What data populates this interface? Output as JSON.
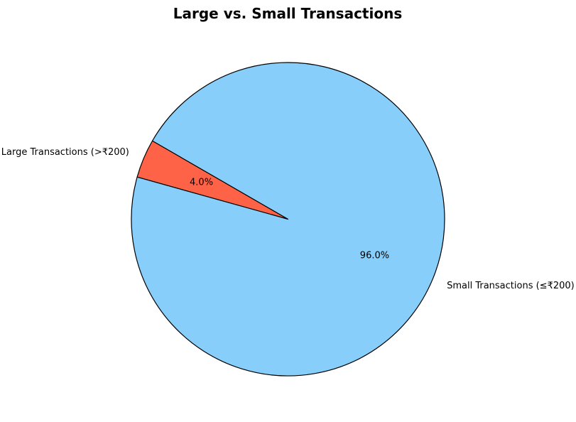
{
  "chart_data": {
    "type": "pie",
    "title": "Large vs. Small Transactions",
    "start_angle_deg": 150,
    "direction": "counterclockwise",
    "slices": [
      {
        "label": "Large Transactions (>₹200)",
        "value": 4.0,
        "pct_label": "4.0%",
        "color": "#ff6347"
      },
      {
        "label": "Small Transactions (≤₹200)",
        "value": 96.0,
        "pct_label": "96.0%",
        "color": "#87cefa"
      }
    ],
    "edge_color": "#000000"
  }
}
